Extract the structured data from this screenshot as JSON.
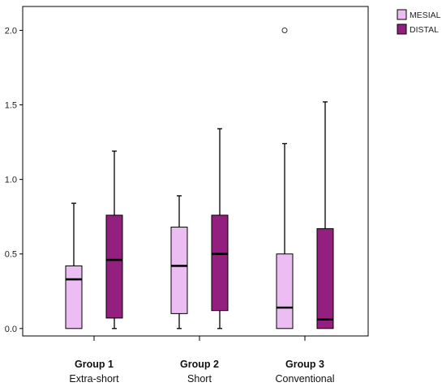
{
  "chart_data": {
    "type": "box",
    "y_ticks": [
      "0.0",
      "0.5",
      "1.0",
      "1.5",
      "2.0"
    ],
    "ylim": [
      -0.05,
      2.16
    ],
    "groups": [
      {
        "title": "Group 1",
        "subtitle": "Extra-short"
      },
      {
        "title": "Group 2",
        "subtitle": "Short"
      },
      {
        "title": "Group 3",
        "subtitle": "Conventional"
      }
    ],
    "series": [
      {
        "name": "MESIAL",
        "color": "#ebbdf2",
        "boxes": [
          {
            "min": 0.0,
            "q1": 0.0,
            "median": 0.33,
            "q3": 0.42,
            "max": 0.84,
            "outliers": []
          },
          {
            "min": 0.0,
            "q1": 0.1,
            "median": 0.42,
            "q3": 0.68,
            "max": 0.89,
            "outliers": []
          },
          {
            "min": 0.0,
            "q1": 0.0,
            "median": 0.14,
            "q3": 0.5,
            "max": 1.24,
            "outliers": [
              2.0
            ]
          }
        ]
      },
      {
        "name": "DISTAL",
        "color": "#93207f",
        "boxes": [
          {
            "min": 0.0,
            "q1": 0.07,
            "median": 0.46,
            "q3": 0.76,
            "max": 1.19,
            "outliers": []
          },
          {
            "min": 0.0,
            "q1": 0.12,
            "median": 0.5,
            "q3": 0.76,
            "max": 1.34,
            "outliers": []
          },
          {
            "min": 0.0,
            "q1": 0.0,
            "median": 0.06,
            "q3": 0.67,
            "max": 1.52,
            "outliers": []
          }
        ]
      }
    ],
    "legend": {
      "position": "top-right outside"
    },
    "grid": false
  }
}
